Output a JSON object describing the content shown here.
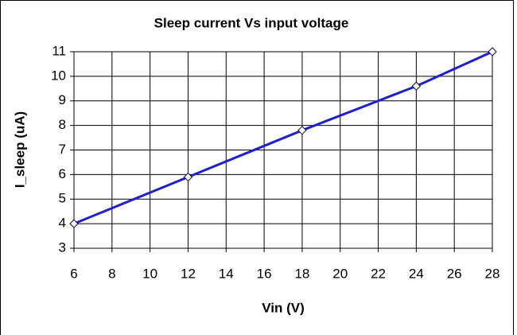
{
  "chart_data": {
    "type": "line",
    "title": "Sleep current Vs input voltage",
    "x_label": "Vin (V)",
    "y_label": "I_sleep (uA)",
    "x": [
      6,
      12,
      18,
      24,
      28
    ],
    "series": [
      {
        "name": "I_sleep",
        "color": "#1f1fd0",
        "values": [
          4,
          5.9,
          7.8,
          9.6,
          11
        ]
      }
    ],
    "xlim": [
      6,
      28
    ],
    "xticks": [
      6,
      8,
      10,
      12,
      14,
      16,
      18,
      20,
      22,
      24,
      26,
      28
    ],
    "ylim": [
      3,
      11
    ],
    "yticks": [
      3,
      4,
      5,
      6,
      7,
      8,
      9,
      10,
      11
    ],
    "grid": true
  }
}
